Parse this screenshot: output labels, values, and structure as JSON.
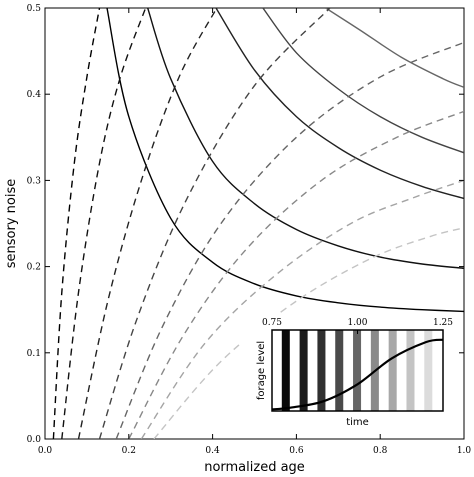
{
  "chart_data": [
    {
      "type": "line",
      "title": "",
      "xlabel": "normalized age",
      "ylabel": "sensory noise",
      "xlim": [
        0.0,
        1.0
      ],
      "ylim": [
        0.0,
        0.5
      ],
      "x_ticks": [
        0.0,
        0.2,
        0.4,
        0.6,
        0.8,
        1.0
      ],
      "x_tick_labels": [
        "0.0",
        "0.2",
        "0.4",
        "0.6",
        "0.8",
        "1.0"
      ],
      "y_ticks": [
        0.0,
        0.1,
        0.2,
        0.3,
        0.4,
        0.5
      ],
      "y_tick_labels": [
        "0.0",
        "0.1",
        "0.2",
        "0.3",
        "0.4",
        "0.5"
      ],
      "grid": false,
      "legend": "none",
      "series": [
        {
          "style": "solid",
          "color": "#000000",
          "points": [
            [
              0.148,
              0.5
            ],
            [
              0.2,
              0.374
            ],
            [
              0.3,
              0.256
            ],
            [
              0.4,
              0.205
            ],
            [
              0.5,
              0.18
            ],
            [
              0.6,
              0.166
            ],
            [
              0.7,
              0.158
            ],
            [
              0.8,
              0.153
            ],
            [
              0.9,
              0.15
            ],
            [
              1.0,
              0.148
            ]
          ]
        },
        {
          "style": "solid",
          "color": "#111111",
          "points": [
            [
              0.245,
              0.5
            ],
            [
              0.3,
              0.418
            ],
            [
              0.4,
              0.322
            ],
            [
              0.5,
              0.273
            ],
            [
              0.6,
              0.243
            ],
            [
              0.7,
              0.224
            ],
            [
              0.8,
              0.211
            ],
            [
              0.9,
              0.203
            ],
            [
              1.0,
              0.198
            ]
          ]
        },
        {
          "style": "solid",
          "color": "#222222",
          "points": [
            [
              0.408,
              0.5
            ],
            [
              0.5,
              0.428
            ],
            [
              0.6,
              0.374
            ],
            [
              0.7,
              0.338
            ],
            [
              0.8,
              0.312
            ],
            [
              0.9,
              0.293
            ],
            [
              1.0,
              0.279
            ]
          ]
        },
        {
          "style": "solid",
          "color": "#444444",
          "points": [
            [
              0.52,
              0.5
            ],
            [
              0.6,
              0.448
            ],
            [
              0.7,
              0.406
            ],
            [
              0.8,
              0.374
            ],
            [
              0.9,
              0.35
            ],
            [
              1.0,
              0.332
            ]
          ]
        },
        {
          "style": "solid",
          "color": "#666666",
          "points": [
            [
              0.67,
              0.5
            ],
            [
              0.75,
              0.475
            ],
            [
              0.85,
              0.443
            ],
            [
              0.95,
              0.418
            ],
            [
              1.0,
              0.408
            ]
          ]
        },
        {
          "style": "dashed",
          "color": "#000000",
          "points": [
            [
              0.02,
              0.0
            ],
            [
              0.04,
              0.17
            ],
            [
              0.07,
              0.32
            ],
            [
              0.1,
              0.42
            ],
            [
              0.13,
              0.5
            ]
          ]
        },
        {
          "style": "dashed",
          "color": "#111111",
          "points": [
            [
              0.04,
              0.0
            ],
            [
              0.08,
              0.17
            ],
            [
              0.13,
              0.32
            ],
            [
              0.18,
              0.42
            ],
            [
              0.24,
              0.5
            ]
          ]
        },
        {
          "style": "dashed",
          "color": "#222222",
          "points": [
            [
              0.08,
              0.0
            ],
            [
              0.15,
              0.16
            ],
            [
              0.23,
              0.3
            ],
            [
              0.32,
              0.42
            ],
            [
              0.41,
              0.5
            ]
          ]
        },
        {
          "style": "dashed",
          "color": "#444444",
          "points": [
            [
              0.13,
              0.0
            ],
            [
              0.22,
              0.14
            ],
            [
              0.34,
              0.28
            ],
            [
              0.5,
              0.41
            ],
            [
              0.68,
              0.5
            ]
          ]
        },
        {
          "style": "dashed",
          "color": "#666666",
          "points": [
            [
              0.17,
              0.0
            ],
            [
              0.28,
              0.13
            ],
            [
              0.42,
              0.25
            ],
            [
              0.6,
              0.35
            ],
            [
              0.8,
              0.42
            ],
            [
              1.0,
              0.46
            ]
          ]
        },
        {
          "style": "dashed",
          "color": "#888888",
          "points": [
            [
              0.2,
              0.0
            ],
            [
              0.33,
              0.12
            ],
            [
              0.48,
              0.22
            ],
            [
              0.66,
              0.3
            ],
            [
              0.84,
              0.35
            ],
            [
              1.0,
              0.38
            ]
          ]
        },
        {
          "style": "dashed",
          "color": "#a4a4a4",
          "points": [
            [
              0.23,
              0.0
            ],
            [
              0.38,
              0.11
            ],
            [
              0.55,
              0.19
            ],
            [
              0.73,
              0.25
            ],
            [
              0.88,
              0.28
            ],
            [
              1.0,
              0.3
            ]
          ]
        },
        {
          "style": "dashed",
          "color": "#c4c4c4",
          "points": [
            [
              0.26,
              0.0
            ],
            [
              0.42,
              0.09
            ],
            [
              0.6,
              0.16
            ],
            [
              0.78,
              0.21
            ],
            [
              0.92,
              0.235
            ],
            [
              1.0,
              0.245
            ]
          ]
        }
      ]
    },
    {
      "type": "line",
      "title": "",
      "xlabel": "time",
      "ylabel": "forage level",
      "xlim": [
        0.75,
        1.25
      ],
      "x_ticks": [
        0.75,
        1.0,
        1.25
      ],
      "x_tick_labels": [
        "0.75",
        "1.00",
        "1.25"
      ],
      "y_ticks": [],
      "grid": false,
      "legend": "none",
      "stripe_colors": [
        "#0a0a0a",
        "#1c1c1c",
        "#303030",
        "#4a4a4a",
        "#666666",
        "#8a8a8a",
        "#a8a8a8",
        "#c4c4c4",
        "#dcdcdc"
      ],
      "curve": [
        [
          0.75,
          0.02
        ],
        [
          0.8,
          0.04
        ],
        [
          0.9,
          0.12
        ],
        [
          1.0,
          0.33
        ],
        [
          1.1,
          0.65
        ],
        [
          1.2,
          0.85
        ],
        [
          1.25,
          0.88
        ]
      ]
    }
  ]
}
